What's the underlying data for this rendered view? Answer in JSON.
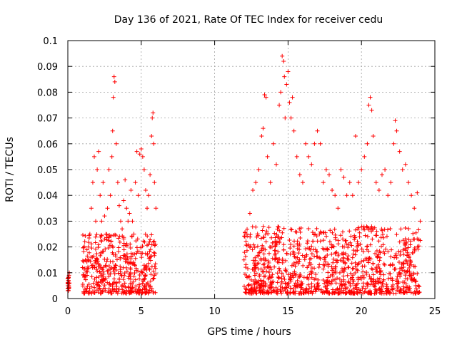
{
  "chart_data": {
    "type": "scatter",
    "title": "Day 136 of 2021, Rate Of TEC Index for receiver cedu",
    "xlabel": "GPS time / hours",
    "ylabel": "ROTI / TECUs",
    "xlim": [
      0,
      25
    ],
    "ylim": [
      0,
      0.1
    ],
    "x_ticks": [
      0,
      5,
      10,
      15,
      20,
      25
    ],
    "x_tick_labels": [
      "0",
      "5",
      "10",
      "15",
      "20",
      "25"
    ],
    "y_ticks": [
      0,
      0.01,
      0.02,
      0.03,
      0.04,
      0.05,
      0.06,
      0.07,
      0.08,
      0.09,
      0.1
    ],
    "y_tick_labels": [
      "0",
      "0.01",
      "0.02",
      "0.03",
      "0.04",
      "0.05",
      "0.06",
      "0.07",
      "0.08",
      "0.09",
      "0.1"
    ],
    "grid": true,
    "marker": "+",
    "color": "#ff0000",
    "series": [
      {
        "x": [
          0.0,
          0.02,
          0.04,
          0.05,
          0.06,
          0.08,
          0.1,
          0.1,
          1.0,
          1.2,
          1.4,
          1.5,
          1.6,
          1.7,
          1.8,
          1.9,
          2.0,
          2.1,
          2.2,
          2.3,
          2.4,
          2.5,
          2.6,
          2.7,
          2.8,
          2.9,
          3.0,
          3.05,
          3.1,
          3.15,
          3.2,
          3.3,
          3.4,
          3.5,
          3.6,
          3.7,
          3.8,
          3.9,
          4.0,
          4.1,
          4.2,
          4.3,
          4.4,
          4.5,
          4.6,
          4.7,
          4.8,
          4.9,
          5.0,
          5.1,
          5.2,
          5.3,
          5.4,
          5.5,
          5.6,
          5.7,
          5.75,
          5.8,
          5.85,
          5.9,
          6.0,
          12.0,
          12.2,
          12.4,
          12.6,
          12.8,
          13.0,
          13.2,
          13.3,
          13.4,
          13.5,
          13.6,
          13.8,
          14.0,
          14.2,
          14.4,
          14.5,
          14.6,
          14.7,
          14.75,
          14.8,
          14.9,
          15.0,
          15.1,
          15.2,
          15.3,
          15.4,
          15.6,
          15.8,
          16.0,
          16.2,
          16.4,
          16.6,
          16.8,
          17.0,
          17.2,
          17.4,
          17.6,
          17.8,
          18.0,
          18.2,
          18.4,
          18.6,
          18.8,
          19.0,
          19.2,
          19.4,
          19.6,
          19.8,
          20.0,
          20.2,
          20.4,
          20.5,
          20.6,
          20.7,
          20.8,
          21.0,
          21.2,
          21.4,
          21.6,
          21.8,
          22.0,
          22.2,
          22.3,
          22.4,
          22.6,
          22.8,
          23.0,
          23.2,
          23.4,
          23.6,
          23.8,
          24.0
        ],
        "y": [
          0.004,
          0.006,
          0.007,
          0.008,
          0.005,
          0.009,
          0.01,
          0.006,
          0.012,
          0.015,
          0.02,
          0.025,
          0.035,
          0.045,
          0.055,
          0.03,
          0.05,
          0.057,
          0.04,
          0.03,
          0.045,
          0.032,
          0.025,
          0.035,
          0.05,
          0.04,
          0.055,
          0.065,
          0.078,
          0.086,
          0.084,
          0.06,
          0.045,
          0.036,
          0.03,
          0.027,
          0.038,
          0.046,
          0.035,
          0.03,
          0.033,
          0.042,
          0.03,
          0.025,
          0.045,
          0.057,
          0.04,
          0.056,
          0.058,
          0.055,
          0.05,
          0.042,
          0.035,
          0.04,
          0.048,
          0.063,
          0.07,
          0.072,
          0.06,
          0.045,
          0.035,
          0.015,
          0.025,
          0.033,
          0.042,
          0.045,
          0.05,
          0.063,
          0.066,
          0.079,
          0.078,
          0.055,
          0.045,
          0.06,
          0.052,
          0.075,
          0.08,
          0.094,
          0.092,
          0.086,
          0.07,
          0.083,
          0.088,
          0.076,
          0.07,
          0.078,
          0.065,
          0.055,
          0.048,
          0.045,
          0.06,
          0.055,
          0.052,
          0.06,
          0.065,
          0.06,
          0.045,
          0.05,
          0.048,
          0.042,
          0.04,
          0.035,
          0.05,
          0.047,
          0.04,
          0.045,
          0.04,
          0.063,
          0.045,
          0.05,
          0.055,
          0.06,
          0.075,
          0.078,
          0.073,
          0.063,
          0.045,
          0.042,
          0.048,
          0.05,
          0.04,
          0.045,
          0.06,
          0.069,
          0.065,
          0.057,
          0.05,
          0.052,
          0.045,
          0.04,
          0.035,
          0.041,
          0.03
        ]
      }
    ],
    "dense_bands": [
      {
        "x_range": [
          0.0,
          0.1
        ],
        "y_range": [
          0.003,
          0.009
        ]
      },
      {
        "x_range": [
          1.0,
          6.0
        ],
        "y_range": [
          0.002,
          0.025
        ]
      },
      {
        "x_range": [
          12.0,
          24.0
        ],
        "y_range": [
          0.002,
          0.028
        ]
      }
    ]
  }
}
